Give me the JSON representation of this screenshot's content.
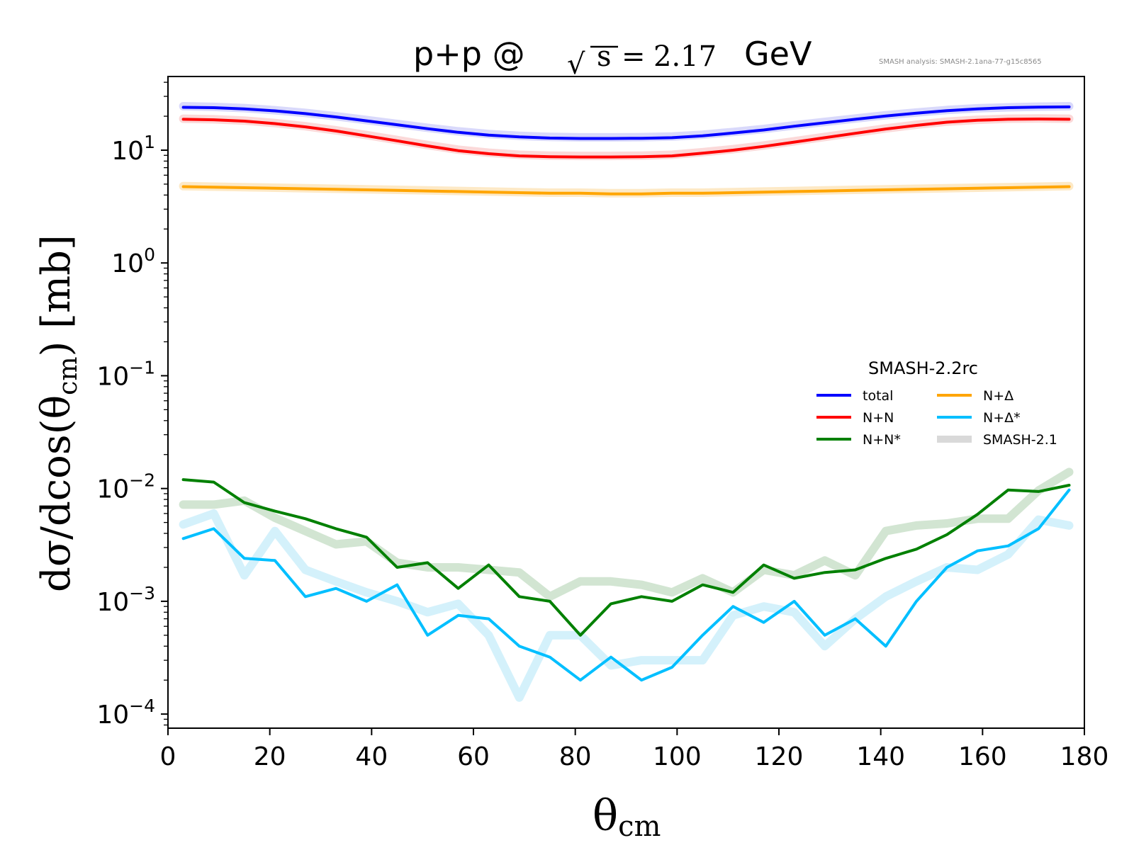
{
  "chart_data": {
    "type": "line",
    "title": {
      "prefix": "p+p @",
      "sqrt_symbol": "√",
      "radicand": "s",
      "equals": "=",
      "value": "2.17",
      "unit": "GeV"
    },
    "watermark": "SMASH analysis: SMASH-2.1ana-77-g15c8565",
    "xlabel": {
      "base": "θ",
      "sub": "cm"
    },
    "ylabel": {
      "pre": "dσ/dcos(θ",
      "sub": "cm",
      "post": ")  [mb]"
    },
    "xlim": [
      0,
      180
    ],
    "ylim": [
      7.5e-05,
      45
    ],
    "yscale": "log",
    "grid": false,
    "x_ticks": [
      0,
      20,
      40,
      60,
      80,
      100,
      120,
      140,
      160,
      180
    ],
    "x_tick_labels": [
      "0",
      "20",
      "40",
      "60",
      "80",
      "100",
      "120",
      "140",
      "160",
      "180"
    ],
    "y_ticks": [
      {
        "value": 10,
        "base": "10",
        "exp": "1"
      },
      {
        "value": 1,
        "base": "10",
        "exp": "0"
      },
      {
        "value": 0.1,
        "base": "10",
        "exp": "−1"
      },
      {
        "value": 0.01,
        "base": "10",
        "exp": "−2"
      },
      {
        "value": 0.001,
        "base": "10",
        "exp": "−3"
      },
      {
        "value": 0.0001,
        "base": "10",
        "exp": "−4"
      }
    ],
    "legend": {
      "title": "SMASH-2.2rc",
      "placement": "center-right",
      "entries": [
        "total",
        "N+Δ",
        "N+N",
        "N+Δ*",
        "N+N*",
        "SMASH-2.1"
      ]
    },
    "x": [
      3,
      9,
      15,
      21,
      27,
      33,
      39,
      45,
      51,
      57,
      63,
      69,
      75,
      81,
      87,
      93,
      99,
      105,
      111,
      117,
      123,
      129,
      135,
      141,
      147,
      153,
      159,
      165,
      171,
      177
    ],
    "reference_series": [
      {
        "name": "SMASH-2.1",
        "color": "#fbd9d9",
        "values": [
          19,
          18.8,
          18.3,
          17.4,
          16.3,
          15,
          13.6,
          12.3,
          11.1,
          10.1,
          9.5,
          9.1,
          8.95,
          8.9,
          8.9,
          8.95,
          9.1,
          9.6,
          10.2,
          11,
          12,
          13.1,
          14.3,
          15.6,
          16.8,
          17.9,
          18.6,
          19,
          19.1,
          19
        ]
      },
      {
        "name": "SMASH-2.1",
        "color": "#d9d9fb",
        "values": [
          24.5,
          24.2,
          23.6,
          22.6,
          21.4,
          20,
          18.5,
          17.1,
          15.8,
          14.7,
          13.9,
          13.4,
          13.1,
          13,
          13,
          13.05,
          13.2,
          13.7,
          14.5,
          15.4,
          16.6,
          17.8,
          19.1,
          20.4,
          21.6,
          22.7,
          23.5,
          24,
          24.3,
          24.5
        ]
      },
      {
        "name": "SMASH-2.1",
        "color": "#fde9c6",
        "values": [
          4.8,
          4.75,
          4.7,
          4.65,
          4.6,
          4.55,
          4.5,
          4.45,
          4.4,
          4.35,
          4.3,
          4.25,
          4.2,
          4.2,
          4.15,
          4.15,
          4.2,
          4.2,
          4.25,
          4.3,
          4.35,
          4.4,
          4.45,
          4.5,
          4.55,
          4.6,
          4.65,
          4.7,
          4.75,
          4.8
        ]
      },
      {
        "name": "SMASH-2.1",
        "color": "#d2e5d2",
        "values": [
          0.0072,
          0.0072,
          0.0078,
          0.0055,
          0.0042,
          0.0032,
          0.0034,
          0.0022,
          0.002,
          0.002,
          0.0019,
          0.0018,
          0.0011,
          0.0015,
          0.0015,
          0.0014,
          0.0012,
          0.0016,
          0.0012,
          0.0019,
          0.0017,
          0.0023,
          0.0017,
          0.0042,
          0.0047,
          0.0049,
          0.0054,
          0.0054,
          0.0096,
          0.014
        ]
      },
      {
        "name": "SMASH-2.1",
        "color": "#d4f1fb",
        "values": [
          0.0048,
          0.006,
          0.0017,
          0.0042,
          0.0019,
          0.0015,
          0.0012,
          0.001,
          0.0008,
          0.00095,
          0.0005,
          0.00014,
          0.0005,
          0.0005,
          0.00027,
          0.0003,
          0.0003,
          0.0003,
          0.00075,
          0.0009,
          0.0008,
          0.0004,
          0.0007,
          0.0011,
          0.0015,
          0.002,
          0.0019,
          0.0026,
          0.0053,
          0.0047
        ]
      }
    ],
    "series": [
      {
        "name": "total",
        "color": "#0000ff",
        "values": [
          24,
          23.8,
          23.2,
          22.3,
          21.1,
          19.7,
          18.2,
          16.8,
          15.5,
          14.4,
          13.6,
          13.1,
          12.8,
          12.7,
          12.7,
          12.75,
          12.9,
          13.4,
          14.2,
          15.1,
          16.3,
          17.5,
          18.8,
          20.1,
          21.3,
          22.4,
          23.2,
          23.8,
          24.1,
          24.2
        ]
      },
      {
        "name": "N+N",
        "color": "#ff0000",
        "values": [
          18.8,
          18.6,
          18.1,
          17.2,
          16.1,
          14.8,
          13.4,
          12.1,
          10.9,
          9.9,
          9.3,
          8.9,
          8.75,
          8.7,
          8.7,
          8.75,
          8.9,
          9.4,
          10,
          10.8,
          11.8,
          12.9,
          14.1,
          15.4,
          16.6,
          17.7,
          18.4,
          18.8,
          18.9,
          18.8
        ]
      },
      {
        "name": "N+Δ",
        "color": "#ffa500",
        "values": [
          4.75,
          4.7,
          4.65,
          4.6,
          4.55,
          4.5,
          4.45,
          4.4,
          4.35,
          4.3,
          4.25,
          4.2,
          4.15,
          4.15,
          4.1,
          4.1,
          4.15,
          4.15,
          4.2,
          4.25,
          4.3,
          4.35,
          4.4,
          4.45,
          4.5,
          4.55,
          4.6,
          4.65,
          4.7,
          4.75
        ]
      },
      {
        "name": "N+N*",
        "color": "#008000",
        "values": [
          0.012,
          0.0114,
          0.0075,
          0.0063,
          0.0054,
          0.0044,
          0.0037,
          0.002,
          0.0022,
          0.0013,
          0.0021,
          0.0011,
          0.001,
          0.0005,
          0.00095,
          0.0011,
          0.001,
          0.0014,
          0.0012,
          0.0021,
          0.0016,
          0.0018,
          0.0019,
          0.0024,
          0.0029,
          0.0039,
          0.0059,
          0.0097,
          0.0094,
          0.0107
        ]
      },
      {
        "name": "N+Δ*",
        "color": "#00bfff",
        "values": [
          0.0036,
          0.0044,
          0.0024,
          0.0023,
          0.0011,
          0.0013,
          0.001,
          0.0014,
          0.0005,
          0.00075,
          0.0007,
          0.0004,
          0.00032,
          0.0002,
          0.00032,
          0.0002,
          0.00026,
          0.0005,
          0.0009,
          0.00065,
          0.001,
          0.0005,
          0.0007,
          0.0004,
          0.001,
          0.002,
          0.0028,
          0.0031,
          0.0044,
          0.0097
        ]
      }
    ]
  }
}
